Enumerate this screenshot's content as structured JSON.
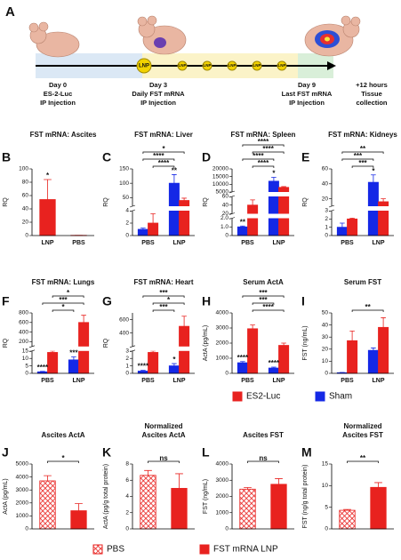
{
  "panel_a": {
    "label": "A",
    "badges": [
      "LNP",
      "LNP",
      "LNP",
      "LNP",
      "LNP",
      "LNP"
    ],
    "events": [
      {
        "lines": [
          "Day 0",
          "ES-2-Luc",
          "IP Injection"
        ]
      },
      {
        "lines": [
          "Day 3",
          "Daily FST mRNA",
          "IP Injection"
        ]
      },
      {
        "lines": [
          "Day 9",
          "Last FST mRNA",
          "IP Injection"
        ]
      },
      {
        "lines": [
          "+12 hours",
          "Tissue",
          "collection"
        ]
      }
    ]
  },
  "chart_data": [
    {
      "type": "bar",
      "label": "B",
      "title": "FST mRNA: Ascites",
      "ylabel": "RQ",
      "categories": [
        "LNP",
        "PBS"
      ],
      "series": [
        {
          "color": "#e8221f",
          "values": [
            54,
            0.3
          ],
          "errors": [
            30,
            0
          ]
        }
      ],
      "ylim": [
        0,
        100
      ],
      "yticks": [
        0,
        20,
        40,
        60,
        80,
        100
      ],
      "annotations": [
        {
          "text": "*",
          "at": [
            0,
            0
          ]
        }
      ]
    },
    {
      "type": "bar",
      "label": "C",
      "title": "FST mRNA: Liver",
      "ylabel": "RQ",
      "categories": [
        "PBS",
        "LNP"
      ],
      "series": [
        {
          "color": "#1428e6",
          "values": [
            1,
            100
          ],
          "errors": [
            0.2,
            30
          ]
        },
        {
          "color": "#e8221f",
          "values": [
            2,
            40
          ],
          "errors": [
            1.5,
            8
          ]
        }
      ],
      "y_segments": [
        {
          "ylim": [
            0,
            4
          ],
          "yticks": [
            0,
            2,
            4
          ]
        },
        {
          "ylim": [
            20,
            150
          ],
          "yticks": [
            50,
            100,
            150
          ]
        }
      ],
      "annotations": [
        {
          "text": "**",
          "at": [
            0,
            1
          ]
        }
      ],
      "brackets": [
        {
          "text": "****",
          "from": [
            1,
            0
          ],
          "to": [
            0,
            1
          ]
        },
        {
          "text": "****",
          "from": [
            0,
            0
          ],
          "to": [
            0,
            1
          ]
        },
        {
          "text": "*",
          "from": [
            0,
            0
          ],
          "to": [
            1,
            1
          ]
        }
      ]
    },
    {
      "type": "bar",
      "label": "D",
      "title": "FST mRNA: Spleen",
      "ylabel": "RQ",
      "categories": [
        "PBS",
        "LNP"
      ],
      "series": [
        {
          "color": "#1428e6",
          "values": [
            1,
            12000
          ],
          "errors": [
            0.1,
            2500
          ]
        },
        {
          "color": "#e8221f",
          "values": [
            40,
            8000
          ],
          "errors": [
            12,
            500
          ]
        }
      ],
      "y_segments": [
        {
          "ylim": [
            0,
            2
          ],
          "yticks": [
            0,
            {
              "value": 1,
              "label": "1.0"
            },
            {
              "value": 2,
              "label": "2.0"
            }
          ]
        },
        {
          "ylim": [
            20,
            60
          ],
          "yticks": [
            20,
            40,
            60
          ]
        },
        {
          "ylim": [
            5000,
            20000
          ],
          "yticks": [
            5000,
            10000,
            15000,
            20000
          ]
        }
      ],
      "annotations": [
        {
          "text": "**",
          "at": [
            0,
            0
          ]
        },
        {
          "text": "*",
          "at": [
            0,
            1
          ]
        }
      ],
      "brackets": [
        {
          "text": "****",
          "from": [
            1,
            0
          ],
          "to": [
            0,
            1
          ]
        },
        {
          "text": "****",
          "from": [
            0,
            0
          ],
          "to": [
            0,
            1
          ]
        },
        {
          "text": "****",
          "from": [
            1,
            0
          ],
          "to": [
            1,
            1
          ]
        },
        {
          "text": "****",
          "from": [
            0,
            0
          ],
          "to": [
            1,
            1
          ]
        }
      ]
    },
    {
      "type": "bar",
      "label": "E",
      "title": "FST mRNA: Kidneys",
      "ylabel": "RQ",
      "categories": [
        "PBS",
        "LNP"
      ],
      "series": [
        {
          "color": "#1428e6",
          "values": [
            1,
            42
          ],
          "errors": [
            0.5,
            10
          ]
        },
        {
          "color": "#e8221f",
          "values": [
            2,
            16
          ],
          "errors": [
            0.1,
            4
          ]
        }
      ],
      "y_segments": [
        {
          "ylim": [
            0,
            3
          ],
          "yticks": [
            0,
            1,
            2,
            3
          ]
        },
        {
          "ylim": [
            10,
            60
          ],
          "yticks": [
            20,
            40,
            60
          ]
        }
      ],
      "annotations": [
        {
          "text": "*",
          "at": [
            0,
            1
          ]
        }
      ],
      "brackets": [
        {
          "text": "***",
          "from": [
            1,
            0
          ],
          "to": [
            0,
            1
          ]
        },
        {
          "text": "***",
          "from": [
            0,
            0
          ],
          "to": [
            0,
            1
          ]
        },
        {
          "text": "**",
          "from": [
            0,
            0
          ],
          "to": [
            1,
            1
          ]
        }
      ]
    },
    {
      "type": "bar",
      "label": "F",
      "title": "FST mRNA: Lungs",
      "ylabel": "RQ",
      "categories": [
        "PBS",
        "LNP"
      ],
      "series": [
        {
          "color": "#1428e6",
          "values": [
            1,
            9
          ],
          "errors": [
            0.3,
            2
          ]
        },
        {
          "color": "#e8221f",
          "values": [
            14,
            600
          ],
          "errors": [
            2,
            150
          ]
        }
      ],
      "y_segments": [
        {
          "ylim": [
            0,
            15
          ],
          "yticks": [
            0,
            5,
            10,
            15
          ]
        },
        {
          "ylim": [
            100,
            800
          ],
          "yticks": [
            200,
            400,
            600,
            800
          ]
        }
      ],
      "annotations": [
        {
          "text": "****",
          "at": [
            0,
            0
          ]
        },
        {
          "text": "***",
          "at": [
            0,
            1
          ]
        }
      ],
      "brackets": [
        {
          "text": "*",
          "from": [
            1,
            0
          ],
          "to": [
            0,
            1
          ]
        },
        {
          "text": "***",
          "from": [
            0,
            0
          ],
          "to": [
            1,
            1
          ]
        },
        {
          "text": "*",
          "from": [
            1,
            0
          ],
          "to": [
            1,
            1
          ]
        }
      ]
    },
    {
      "type": "bar",
      "label": "G",
      "title": "FST mRNA: Heart",
      "ylabel": "RQ",
      "categories": [
        "PBS",
        "LNP"
      ],
      "series": [
        {
          "color": "#1428e6",
          "values": [
            0.3,
            1
          ],
          "errors": [
            0.1,
            0.3
          ]
        },
        {
          "color": "#e8221f",
          "values": [
            2.8,
            500
          ],
          "errors": [
            0.2,
            150
          ]
        }
      ],
      "y_segments": [
        {
          "ylim": [
            0,
            3
          ],
          "yticks": [
            0,
            1,
            2,
            3
          ]
        },
        {
          "ylim": [
            200,
            700
          ],
          "yticks": [
            400,
            600
          ]
        }
      ],
      "annotations": [
        {
          "text": "****",
          "at": [
            0,
            0
          ]
        },
        {
          "text": "*",
          "at": [
            0,
            1
          ]
        }
      ],
      "brackets": [
        {
          "text": "***",
          "from": [
            1,
            0
          ],
          "to": [
            0,
            1
          ]
        },
        {
          "text": "*",
          "from": [
            1,
            0
          ],
          "to": [
            1,
            1
          ]
        },
        {
          "text": "***",
          "from": [
            0,
            0
          ],
          "to": [
            1,
            1
          ]
        }
      ]
    },
    {
      "type": "bar",
      "label": "H",
      "title": "Serum ActA",
      "ylabel": "ActA (pg/mL)",
      "categories": [
        "PBS",
        "LNP"
      ],
      "series": [
        {
          "color": "#1428e6",
          "values": [
            700,
            350
          ],
          "errors": [
            80,
            60
          ]
        },
        {
          "color": "#e8221f",
          "values": [
            2950,
            1850
          ],
          "errors": [
            250,
            150
          ]
        }
      ],
      "ylim": [
        0,
        4000
      ],
      "yticks": [
        0,
        1000,
        2000,
        3000,
        4000
      ],
      "annotations": [
        {
          "text": "****",
          "at": [
            0,
            0
          ]
        },
        {
          "text": "****",
          "at": [
            0,
            1
          ]
        }
      ],
      "brackets": [
        {
          "text": "****",
          "from": [
            1,
            0
          ],
          "to": [
            1,
            1
          ]
        },
        {
          "text": "***",
          "from": [
            1,
            0
          ],
          "to": [
            0,
            1
          ]
        },
        {
          "text": "***",
          "from": [
            0,
            0
          ],
          "to": [
            1,
            1
          ]
        }
      ]
    },
    {
      "type": "bar",
      "label": "I",
      "title": "Serum FST",
      "ylabel": "FST (ng/mL)",
      "categories": [
        "PBS",
        "LNP"
      ],
      "series": [
        {
          "color": "#1428e6",
          "values": [
            0.5,
            19
          ],
          "errors": [
            0.2,
            2
          ]
        },
        {
          "color": "#e8221f",
          "values": [
            27,
            38
          ],
          "errors": [
            8,
            8
          ]
        }
      ],
      "ylim": [
        0,
        50
      ],
      "yticks": [
        0,
        10,
        20,
        30,
        40,
        50
      ],
      "brackets": [
        {
          "text": "**",
          "from": [
            1,
            0
          ],
          "to": [
            1,
            1
          ]
        }
      ]
    },
    {
      "type": "bar",
      "label": "J",
      "title": "Ascites ActA",
      "ylabel": "ActA (pg/mL)",
      "series": [
        {
          "color": "#e8221f",
          "hatch": [
            true,
            false
          ],
          "values": [
            3700,
            1400
          ],
          "errors": [
            400,
            550
          ]
        }
      ],
      "ylim": [
        0,
        5000
      ],
      "yticks": [
        0,
        1000,
        2000,
        3000,
        4000,
        5000
      ],
      "brackets": [
        {
          "text": "*",
          "from": [
            0,
            0
          ],
          "to": [
            0,
            1
          ]
        }
      ]
    },
    {
      "type": "bar",
      "label": "K",
      "title": [
        "Normalized",
        "Ascites ActA"
      ],
      "ylabel": "ActA (pg/g total protein)",
      "series": [
        {
          "color": "#e8221f",
          "hatch": [
            true,
            false
          ],
          "values": [
            6.6,
            5.0
          ],
          "errors": [
            0.6,
            1.8
          ]
        }
      ],
      "ylim": [
        0,
        8
      ],
      "yticks": [
        0,
        2,
        4,
        6,
        8
      ],
      "brackets": [
        {
          "text": "ns",
          "from": [
            0,
            0
          ],
          "to": [
            0,
            1
          ]
        }
      ]
    },
    {
      "type": "bar",
      "label": "L",
      "title": "Ascites FST",
      "ylabel": "FST (ng/mL)",
      "series": [
        {
          "color": "#e8221f",
          "hatch": [
            true,
            false
          ],
          "values": [
            2450,
            2750
          ],
          "errors": [
            100,
            350
          ]
        }
      ],
      "ylim": [
        0,
        4000
      ],
      "yticks": [
        0,
        1000,
        2000,
        3000,
        4000
      ],
      "brackets": [
        {
          "text": "ns",
          "from": [
            0,
            0
          ],
          "to": [
            0,
            1
          ]
        }
      ]
    },
    {
      "type": "bar",
      "label": "M",
      "title": [
        "Normalized",
        "Ascites FST"
      ],
      "ylabel": "FST (ng/g total protein)",
      "series": [
        {
          "color": "#e8221f",
          "hatch": [
            true,
            false
          ],
          "values": [
            4.3,
            9.6
          ],
          "errors": [
            0.2,
            1.1
          ]
        }
      ],
      "ylim": [
        0,
        15
      ],
      "yticks": [
        0,
        5,
        10,
        15
      ],
      "brackets": [
        {
          "text": "**",
          "from": [
            0,
            0
          ],
          "to": [
            0,
            1
          ]
        }
      ]
    }
  ],
  "legend_fi": {
    "items": [
      {
        "name": "ES2-Luc",
        "color": "#e8221f"
      },
      {
        "name": "Sham",
        "color": "#1428e6"
      }
    ]
  },
  "legend_jm": {
    "items": [
      {
        "name": "PBS",
        "color": "#e8221f",
        "hatch": true
      },
      {
        "name": "FST mRNA LNP",
        "color": "#e8221f"
      }
    ]
  }
}
